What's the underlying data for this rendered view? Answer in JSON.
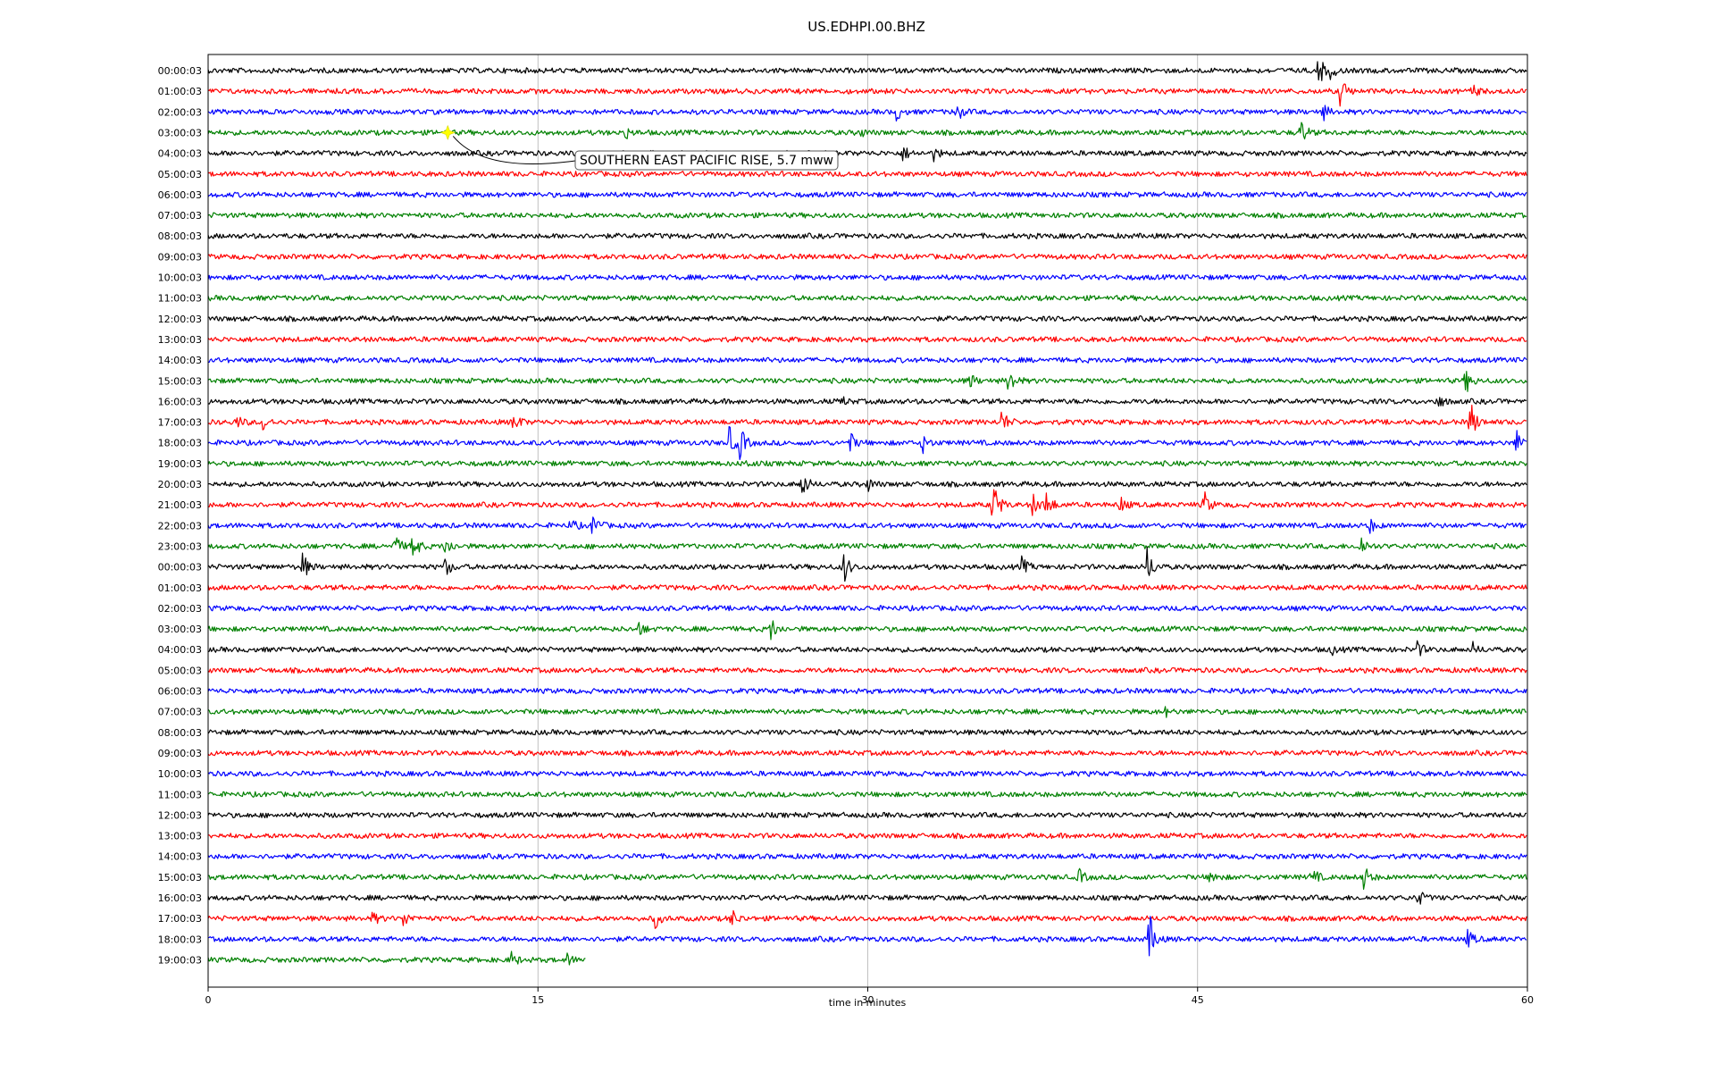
{
  "chart_data": {
    "type": "line",
    "title": "US.EDHPI.00.BHZ",
    "xlabel": "time in minutes",
    "ylabel": "",
    "xlim": [
      0,
      60
    ],
    "xticks": [
      "0",
      "15",
      "30",
      "45",
      "60"
    ],
    "grid": "vertical",
    "trace_colors": [
      "#000000",
      "#ff0000",
      "#0000ff",
      "#008000"
    ],
    "row_labels": [
      "00:00:03",
      "01:00:03",
      "02:00:03",
      "03:00:03",
      "04:00:03",
      "05:00:03",
      "06:00:03",
      "07:00:03",
      "08:00:03",
      "09:00:03",
      "10:00:03",
      "11:00:03",
      "12:00:03",
      "13:00:03",
      "14:00:03",
      "15:00:03",
      "16:00:03",
      "17:00:03",
      "18:00:03",
      "19:00:03",
      "20:00:03",
      "21:00:03",
      "22:00:03",
      "23:00:03",
      "00:00:03",
      "01:00:03",
      "02:00:03",
      "03:00:03",
      "04:00:03",
      "05:00:03",
      "06:00:03",
      "07:00:03",
      "08:00:03",
      "09:00:03",
      "10:00:03",
      "11:00:03",
      "12:00:03",
      "13:00:03",
      "14:00:03",
      "15:00:03",
      "16:00:03",
      "17:00:03",
      "18:00:03",
      "19:00:03"
    ],
    "last_row_end_minute": 17.2,
    "events": [
      {
        "row": 0,
        "t": 50.5,
        "amp": 1.0
      },
      {
        "row": 0,
        "t": 51.0,
        "amp": 0.5
      },
      {
        "row": 1,
        "t": 51.5,
        "amp": 1.0
      },
      {
        "row": 1,
        "t": 57.5,
        "amp": 0.4
      },
      {
        "row": 2,
        "t": 31.3,
        "amp": 0.5
      },
      {
        "row": 2,
        "t": 34.0,
        "amp": 0.7
      },
      {
        "row": 2,
        "t": 50.7,
        "amp": 0.5
      },
      {
        "row": 3,
        "t": 18.9,
        "amp": 0.5
      },
      {
        "row": 3,
        "t": 29.6,
        "amp": 0.3
      },
      {
        "row": 3,
        "t": 49.7,
        "amp": 0.8
      },
      {
        "row": 4,
        "t": 31.6,
        "amp": 0.5
      },
      {
        "row": 4,
        "t": 33.0,
        "amp": 0.4
      },
      {
        "row": 15,
        "t": 36.4,
        "amp": 1.0
      },
      {
        "row": 15,
        "t": 34.6,
        "amp": 0.5
      },
      {
        "row": 15,
        "t": 57.2,
        "amp": 0.8
      },
      {
        "row": 16,
        "t": 55.9,
        "amp": 0.5
      },
      {
        "row": 16,
        "t": 28.8,
        "amp": 0.3
      },
      {
        "row": 17,
        "t": 1.3,
        "amp": 0.4
      },
      {
        "row": 17,
        "t": 2.5,
        "amp": 0.5
      },
      {
        "row": 17,
        "t": 13.9,
        "amp": 0.7
      },
      {
        "row": 17,
        "t": 36.1,
        "amp": 0.8
      },
      {
        "row": 17,
        "t": 57.4,
        "amp": 1.4
      },
      {
        "row": 18,
        "t": 23.7,
        "amp": 1.0
      },
      {
        "row": 18,
        "t": 24.2,
        "amp": 1.0
      },
      {
        "row": 18,
        "t": 29.2,
        "amp": 0.6
      },
      {
        "row": 18,
        "t": 32.5,
        "amp": 0.6
      },
      {
        "row": 18,
        "t": 59.5,
        "amp": 0.8
      },
      {
        "row": 19,
        "t": 24.5,
        "amp": 0.2
      },
      {
        "row": 20,
        "t": 27.0,
        "amp": 0.9
      },
      {
        "row": 20,
        "t": 30.0,
        "amp": 0.4
      },
      {
        "row": 21,
        "t": 35.7,
        "amp": 1.8
      },
      {
        "row": 21,
        "t": 37.5,
        "amp": 0.7
      },
      {
        "row": 21,
        "t": 38.1,
        "amp": 1.0
      },
      {
        "row": 21,
        "t": 45.3,
        "amp": 0.8
      },
      {
        "row": 21,
        "t": 41.5,
        "amp": 0.5
      },
      {
        "row": 22,
        "t": 16.5,
        "amp": 0.4
      },
      {
        "row": 22,
        "t": 17.5,
        "amp": 0.8
      },
      {
        "row": 22,
        "t": 52.8,
        "amp": 0.5
      },
      {
        "row": 23,
        "t": 8.5,
        "amp": 0.7
      },
      {
        "row": 23,
        "t": 9.3,
        "amp": 1.0
      },
      {
        "row": 23,
        "t": 10.8,
        "amp": 0.6
      },
      {
        "row": 23,
        "t": 52.4,
        "amp": 0.8
      },
      {
        "row": 24,
        "t": 4.3,
        "amp": 0.9
      },
      {
        "row": 24,
        "t": 10.8,
        "amp": 0.6
      },
      {
        "row": 24,
        "t": 28.9,
        "amp": 1.0
      },
      {
        "row": 24,
        "t": 37.0,
        "amp": 0.6
      },
      {
        "row": 24,
        "t": 42.7,
        "amp": 1.2
      },
      {
        "row": 27,
        "t": 19.6,
        "amp": 0.4
      },
      {
        "row": 27,
        "t": 25.6,
        "amp": 0.7
      },
      {
        "row": 28,
        "t": 51.0,
        "amp": 0.4
      },
      {
        "row": 28,
        "t": 55.0,
        "amp": 0.5
      },
      {
        "row": 28,
        "t": 57.5,
        "amp": 0.4
      },
      {
        "row": 31,
        "t": 43.5,
        "amp": 0.3
      },
      {
        "row": 39,
        "t": 39.6,
        "amp": 0.5
      },
      {
        "row": 39,
        "t": 45.6,
        "amp": 0.5
      },
      {
        "row": 39,
        "t": 52.5,
        "amp": 1.0
      },
      {
        "row": 39,
        "t": 50.2,
        "amp": 0.6
      },
      {
        "row": 40,
        "t": 55.0,
        "amp": 0.6
      },
      {
        "row": 41,
        "t": 7.5,
        "amp": 0.4
      },
      {
        "row": 41,
        "t": 8.9,
        "amp": 0.5
      },
      {
        "row": 41,
        "t": 20.3,
        "amp": 0.6
      },
      {
        "row": 41,
        "t": 23.8,
        "amp": 0.6
      },
      {
        "row": 42,
        "t": 42.8,
        "amp": 1.6
      },
      {
        "row": 42,
        "t": 57.3,
        "amp": 0.6
      },
      {
        "row": 43,
        "t": 13.8,
        "amp": 0.5
      },
      {
        "row": 43,
        "t": 16.3,
        "amp": 0.4
      }
    ],
    "annotation": {
      "label": "SOUTHERN EAST PACIFIC RISE, 5.7 mww",
      "row": 3,
      "t": 10.9,
      "marker_color": "#ffff00"
    }
  }
}
